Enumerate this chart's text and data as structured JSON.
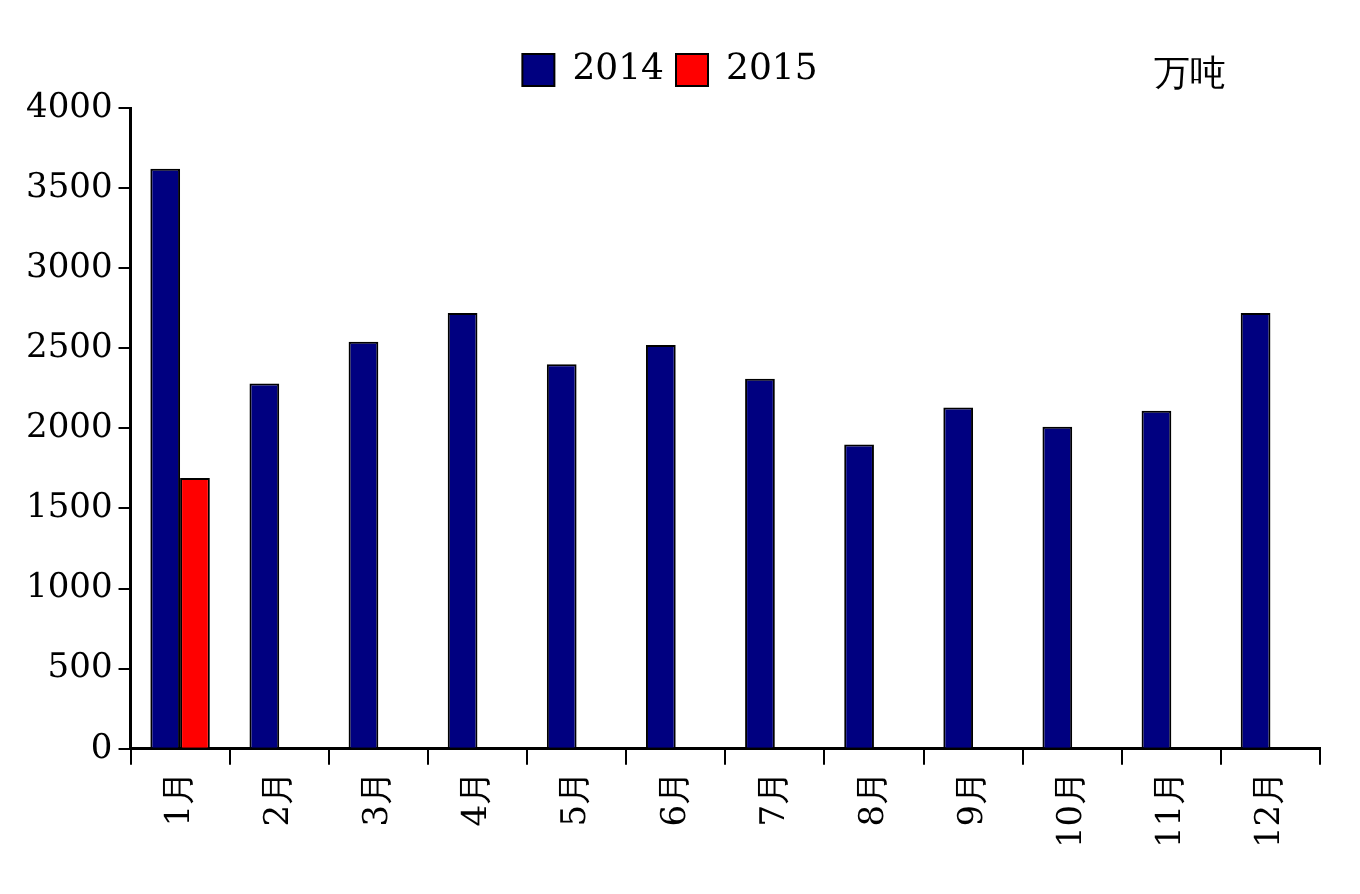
{
  "chart_data": {
    "type": "bar",
    "ylabel": "万吨",
    "categories": [
      "1月",
      "2月",
      "3月",
      "4月",
      "5月",
      "6月",
      "7月",
      "8月",
      "9月",
      "10月",
      "11月",
      "12月"
    ],
    "series": [
      {
        "name": "2014",
        "color": "#000080",
        "values": [
          3620,
          2280,
          2540,
          2720,
          2400,
          2520,
          2310,
          1900,
          2130,
          2010,
          2110,
          2720
        ]
      },
      {
        "name": "2015",
        "color": "#ff0000",
        "values": [
          1690,
          null,
          null,
          null,
          null,
          null,
          null,
          null,
          null,
          null,
          null,
          null
        ]
      }
    ],
    "ylim": [
      0,
      4000
    ],
    "yticks": [
      0,
      500,
      1000,
      1500,
      2000,
      2500,
      3000,
      3500,
      4000
    ],
    "grid": false,
    "legend": "top"
  }
}
